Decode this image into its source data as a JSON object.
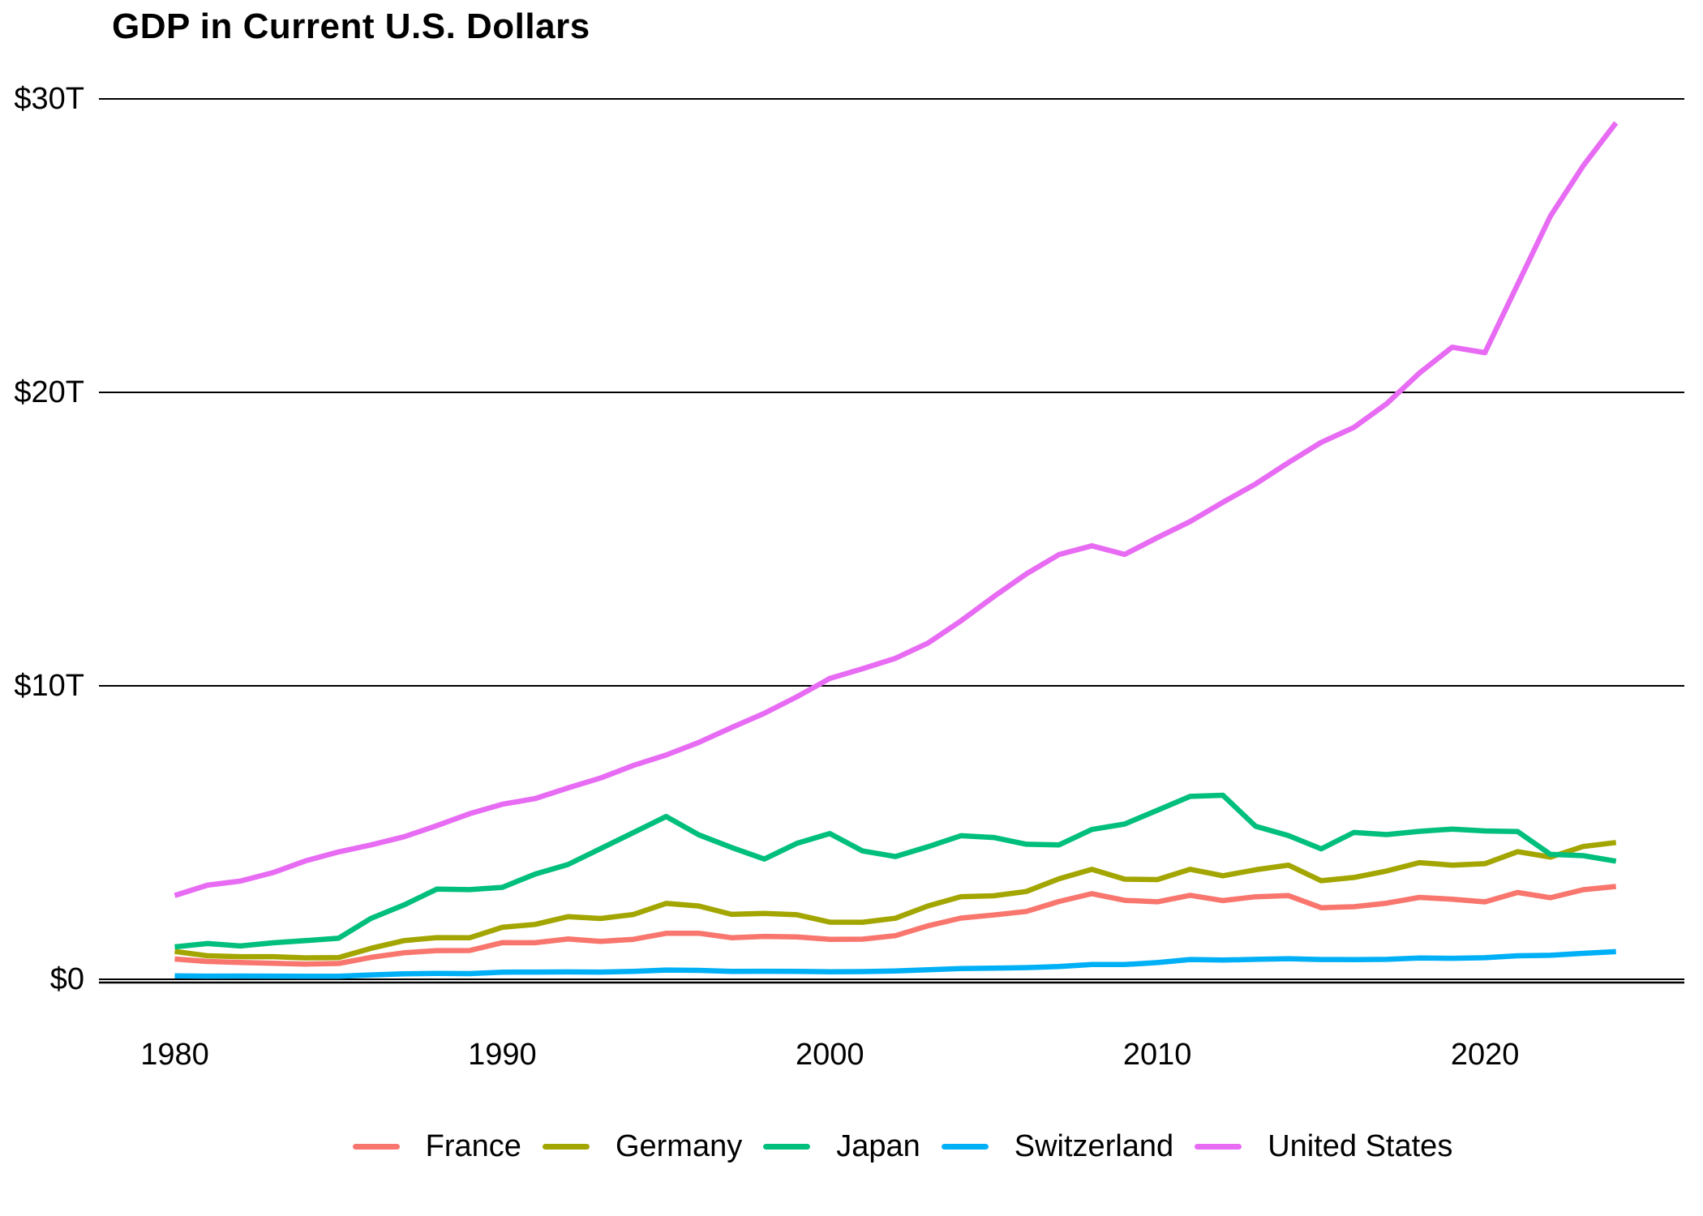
{
  "page": {
    "background": "#ffffff",
    "text_color": "#000000"
  },
  "chart_data": {
    "type": "line",
    "title": "GDP in Current U.S. Dollars",
    "xlabel": "",
    "ylabel": "",
    "unit": "trillions of current U.S. dollars",
    "grid": "horizontal",
    "legend_position": "bottom",
    "xlim": [
      1980,
      2024
    ],
    "ylim": [
      0,
      30
    ],
    "x": [
      1980,
      1981,
      1982,
      1983,
      1984,
      1985,
      1986,
      1987,
      1988,
      1989,
      1990,
      1991,
      1992,
      1993,
      1994,
      1995,
      1996,
      1997,
      1998,
      1999,
      2000,
      2001,
      2002,
      2003,
      2004,
      2005,
      2006,
      2007,
      2008,
      2009,
      2010,
      2011,
      2012,
      2013,
      2014,
      2015,
      2016,
      2017,
      2018,
      2019,
      2020,
      2021,
      2022,
      2023,
      2024
    ],
    "x_axis": {
      "ticks": [
        {
          "value": 1980,
          "label": "1980"
        },
        {
          "value": 1990,
          "label": "1990"
        },
        {
          "value": 2000,
          "label": "2000"
        },
        {
          "value": 2010,
          "label": "2010"
        },
        {
          "value": 2020,
          "label": "2020"
        }
      ]
    },
    "y_axis": {
      "ticks": [
        {
          "value": 0,
          "label": "$0"
        },
        {
          "value": 10,
          "label": "$10T"
        },
        {
          "value": 20,
          "label": "$20T"
        },
        {
          "value": 30,
          "label": "$30T"
        }
      ]
    },
    "axis_color": "#000000",
    "series": [
      {
        "name": "France",
        "color": "#F8766D",
        "values": [
          0.691,
          0.609,
          0.575,
          0.548,
          0.518,
          0.54,
          0.748,
          0.903,
          0.979,
          0.982,
          1.249,
          1.246,
          1.373,
          1.293,
          1.363,
          1.566,
          1.568,
          1.416,
          1.461,
          1.444,
          1.362,
          1.368,
          1.486,
          1.823,
          2.087,
          2.191,
          2.312,
          2.653,
          2.918,
          2.69,
          2.642,
          2.861,
          2.683,
          2.811,
          2.852,
          2.439,
          2.471,
          2.595,
          2.79,
          2.729,
          2.639,
          2.959,
          2.78,
          3.052,
          3.162
        ]
      },
      {
        "name": "Germany",
        "color": "#A3A500",
        "values": [
          0.947,
          0.8,
          0.771,
          0.77,
          0.728,
          0.74,
          1.057,
          1.317,
          1.42,
          1.413,
          1.772,
          1.869,
          2.132,
          2.072,
          2.207,
          2.586,
          2.498,
          2.213,
          2.243,
          2.199,
          1.948,
          1.945,
          2.079,
          2.501,
          2.814,
          2.846,
          2.993,
          3.425,
          3.745,
          3.411,
          3.399,
          3.749,
          3.527,
          3.733,
          3.889,
          3.358,
          3.469,
          3.69,
          3.974,
          3.889,
          3.94,
          4.348,
          4.163,
          4.526,
          4.66
        ]
      },
      {
        "name": "Japan",
        "color": "#00BF7D",
        "values": [
          1.105,
          1.219,
          1.134,
          1.243,
          1.318,
          1.399,
          2.079,
          2.533,
          3.072,
          3.054,
          3.133,
          3.584,
          3.909,
          4.454,
          4.998,
          5.546,
          4.924,
          4.492,
          4.098,
          4.636,
          4.968,
          4.374,
          4.183,
          4.519,
          4.893,
          4.831,
          4.601,
          4.579,
          5.106,
          5.289,
          5.759,
          6.233,
          6.272,
          5.212,
          4.897,
          4.444,
          5.003,
          4.931,
          5.041,
          5.118,
          5.055,
          5.034,
          4.256,
          4.213,
          4.026
        ]
      },
      {
        "name": "Switzerland",
        "color": "#00B0F6",
        "values": [
          0.118,
          0.108,
          0.111,
          0.109,
          0.104,
          0.105,
          0.148,
          0.184,
          0.198,
          0.193,
          0.244,
          0.245,
          0.252,
          0.246,
          0.27,
          0.315,
          0.304,
          0.267,
          0.274,
          0.268,
          0.256,
          0.262,
          0.284,
          0.325,
          0.366,
          0.38,
          0.399,
          0.434,
          0.506,
          0.502,
          0.568,
          0.675,
          0.654,
          0.68,
          0.701,
          0.674,
          0.672,
          0.68,
          0.723,
          0.716,
          0.735,
          0.8,
          0.818,
          0.885,
          0.942
        ]
      },
      {
        "name": "United States",
        "color": "#E76BF3",
        "values": [
          2.857,
          3.207,
          3.344,
          3.634,
          4.038,
          4.339,
          4.58,
          4.855,
          5.236,
          5.642,
          5.963,
          6.158,
          6.52,
          6.859,
          7.287,
          7.64,
          8.073,
          8.578,
          9.063,
          9.631,
          10.251,
          10.582,
          10.936,
          11.458,
          12.214,
          13.037,
          13.816,
          14.474,
          14.77,
          14.478,
          15.049,
          15.6,
          16.254,
          16.88,
          17.608,
          18.295,
          18.804,
          19.612,
          20.657,
          21.54,
          21.354,
          23.681,
          26.007,
          27.721,
          29.185
        ]
      }
    ]
  }
}
